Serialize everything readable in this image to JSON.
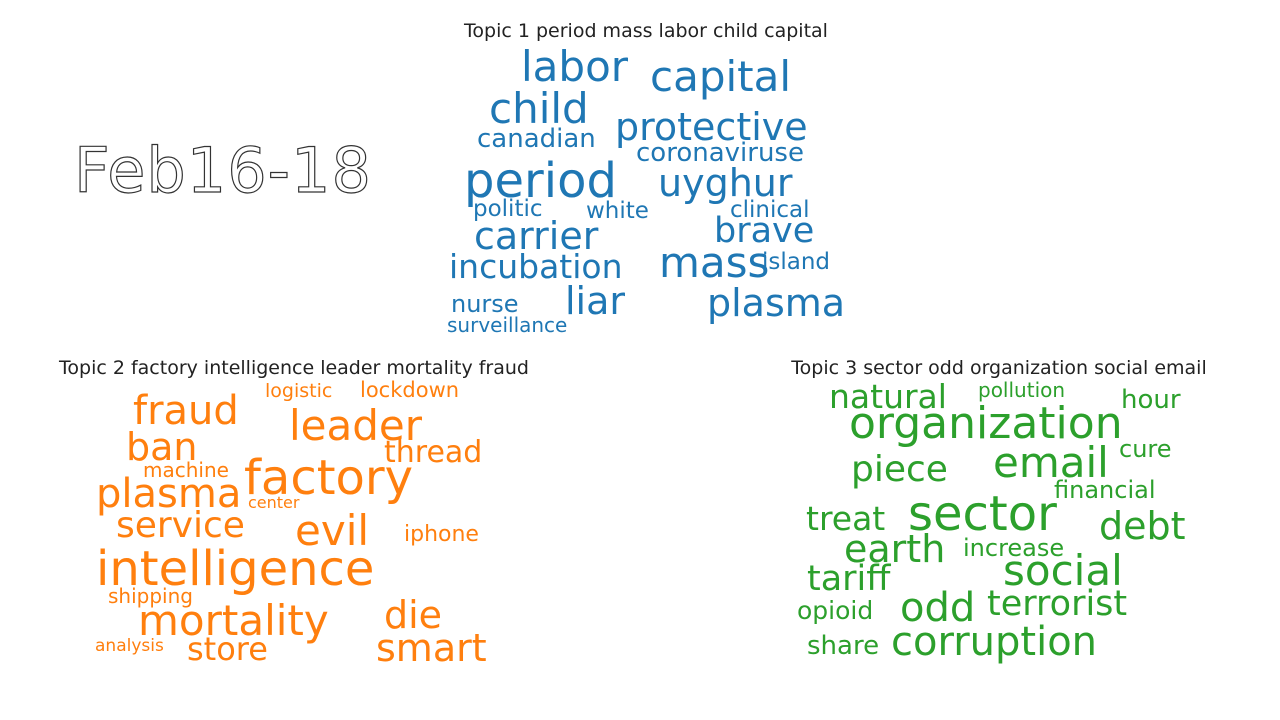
{
  "date_label": "Feb16-18",
  "colors": {
    "topic1": "#1f77b4",
    "topic2": "#ff7f0e",
    "topic3": "#2ca02c"
  },
  "topics": [
    {
      "title": "Topic 1 period mass labor child capital",
      "words": [
        "labor",
        "capital",
        "child",
        "protective",
        "canadian",
        "coronaviruse",
        "period",
        "uyghur",
        "politic",
        "white",
        "clinical",
        "carrier",
        "brave",
        "incubation",
        "mass",
        "island",
        "nurse",
        "liar",
        "plasma",
        "surveillance"
      ]
    },
    {
      "title": "Topic 2 factory intelligence leader mortality fraud",
      "words": [
        "logistic",
        "lockdown",
        "fraud",
        "leader",
        "ban",
        "thread",
        "machine",
        "factory",
        "plasma",
        "center",
        "service",
        "evil",
        "iphone",
        "intelligence",
        "shipping",
        "mortality",
        "die",
        "analysis",
        "store",
        "smart"
      ]
    },
    {
      "title": "Topic 3 sector odd organization social email",
      "words": [
        "natural",
        "pollution",
        "hour",
        "organization",
        "cure",
        "piece",
        "email",
        "financial",
        "treat",
        "sector",
        "debt",
        "earth",
        "increase",
        "tariff",
        "social",
        "opioid",
        "odd",
        "terrorist",
        "share",
        "corruption"
      ]
    }
  ]
}
